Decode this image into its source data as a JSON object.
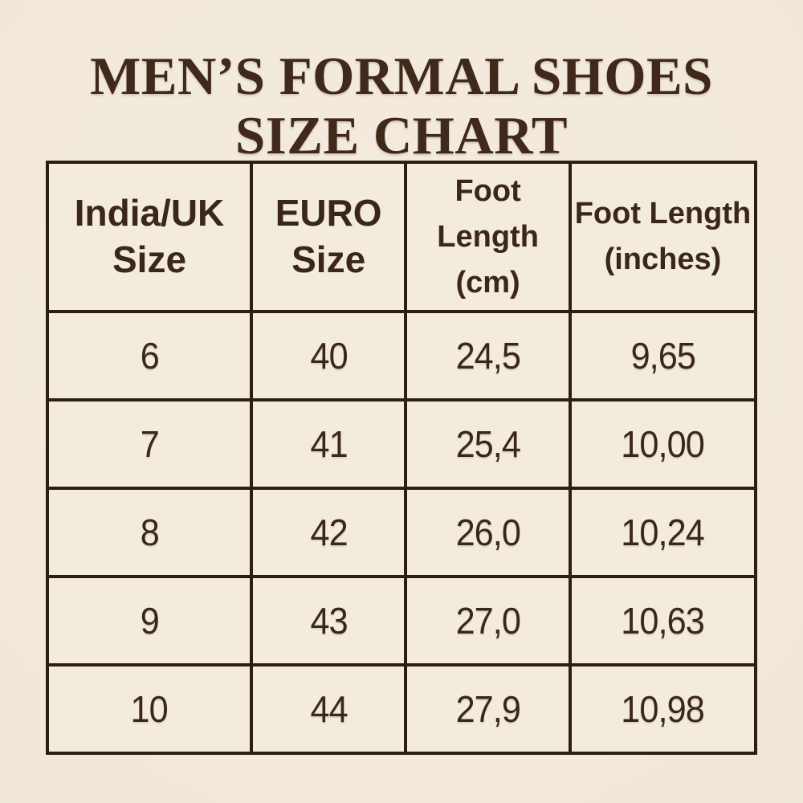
{
  "title": {
    "line1": "MEN’S FORMAL SHOES",
    "line2": "SIZE CHART"
  },
  "colors": {
    "background": "#f2e9dc",
    "cell_background": "#f3ebde",
    "border": "#2e1e12",
    "text": "#3a2719",
    "title_text": "#40291a"
  },
  "chart_data": {
    "type": "table",
    "title": "MEN’S FORMAL SHOES SIZE CHART",
    "columns": [
      {
        "label": "India/UK Size",
        "line1": "India/UK",
        "line2": "Size"
      },
      {
        "label": "EURO Size",
        "line1": "EURO",
        "line2": "Size"
      },
      {
        "label": "Foot Length (cm)",
        "line1": "Foot",
        "line2": "Length (cm)"
      },
      {
        "label": "Foot Length (inches)",
        "line1": "Foot Length",
        "line2": "(inches)"
      }
    ],
    "rows": [
      [
        "6",
        "40",
        "24,5",
        "9,65"
      ],
      [
        "7",
        "41",
        "25,4",
        "10,00"
      ],
      [
        "8",
        "42",
        "26,0",
        "10,24"
      ],
      [
        "9",
        "43",
        "27,0",
        "10,63"
      ],
      [
        "10",
        "44",
        "27,9",
        "10,98"
      ]
    ]
  }
}
